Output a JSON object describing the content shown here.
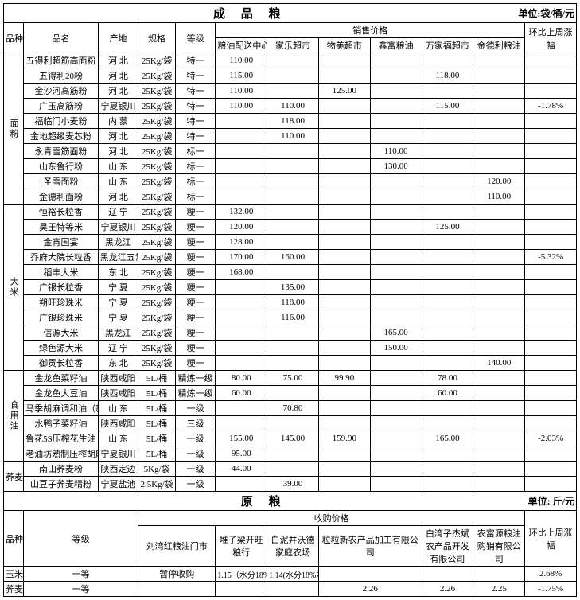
{
  "titles": {
    "main1": "成 品 粮",
    "unit1": "单位:袋/桶/元",
    "main2": "原   粮",
    "unit2": "单位: 斤/元"
  },
  "headers1": {
    "pz": "品种",
    "pm": "品名",
    "cd": "产地",
    "gg": "规格",
    "dj": "等级",
    "xsjg": "销售价格",
    "hbsz": "环比上周涨幅",
    "cols": [
      "粮油配送中心",
      "家乐超市",
      "物美超市",
      "鑫富粮油",
      "万家福超市",
      "金德利粮油"
    ]
  },
  "cat": {
    "mf": "面粉",
    "dm": "大米",
    "syy": "食用油",
    "qmm": "荞麦面",
    "ym": "玉米",
    "qm": "荞麦"
  },
  "rows_mf": [
    {
      "pm": "五得利超筋高面粉",
      "cd": "河  北",
      "gg": "25Kg/袋",
      "dj": "特一",
      "v": [
        "110.00",
        "",
        "",
        "",
        "",
        ""
      ],
      "hb": ""
    },
    {
      "pm": "五得利20粉",
      "cd": "河  北",
      "gg": "25Kg/袋",
      "dj": "特一",
      "v": [
        "115.00",
        "",
        "",
        "",
        "118.00",
        ""
      ],
      "hb": ""
    },
    {
      "pm": "金沙河高筋粉",
      "cd": "河  北",
      "gg": "25Kg/袋",
      "dj": "特一",
      "v": [
        "110.00",
        "",
        "125.00",
        "",
        "",
        ""
      ],
      "hb": ""
    },
    {
      "pm": "广玉高筋粉",
      "cd": "宁夏银川",
      "gg": "25Kg/袋",
      "dj": "特一",
      "v": [
        "110.00",
        "110.00",
        "",
        "",
        "115.00",
        ""
      ],
      "hb": "-1.78%"
    },
    {
      "pm": "福临门小麦粉",
      "cd": "内  蒙",
      "gg": "25Kg/袋",
      "dj": "特一",
      "v": [
        "",
        "118.00",
        "",
        "",
        "",
        ""
      ],
      "hb": ""
    },
    {
      "pm": "金地超级麦芯粉",
      "cd": "河  北",
      "gg": "25Kg/袋",
      "dj": "特一",
      "v": [
        "",
        "110.00",
        "",
        "",
        "",
        ""
      ],
      "hb": ""
    },
    {
      "pm": "永青雪筋面粉",
      "cd": "河  北",
      "gg": "25Kg/袋",
      "dj": "标一",
      "v": [
        "",
        "",
        "",
        "110.00",
        "",
        ""
      ],
      "hb": ""
    },
    {
      "pm": "山东鲁行粉",
      "cd": "山  东",
      "gg": "25Kg/袋",
      "dj": "标一",
      "v": [
        "",
        "",
        "",
        "130.00",
        "",
        ""
      ],
      "hb": ""
    },
    {
      "pm": "圣雪面粉",
      "cd": "山  东",
      "gg": "25Kg/袋",
      "dj": "标一",
      "v": [
        "",
        "",
        "",
        "",
        "",
        "120.00"
      ],
      "hb": ""
    },
    {
      "pm": "金德利面粉",
      "cd": "河  北",
      "gg": "25Kg/袋",
      "dj": "标一",
      "v": [
        "",
        "",
        "",
        "",
        "",
        "110.00"
      ],
      "hb": ""
    }
  ],
  "rows_dm": [
    {
      "pm": "恒裕长粒香",
      "cd": "辽  宁",
      "gg": "25Kg/袋",
      "dj": "粳一",
      "v": [
        "132.00",
        "",
        "",
        "",
        "",
        ""
      ],
      "hb": ""
    },
    {
      "pm": "昊王特等米",
      "cd": "宁夏银川",
      "gg": "25Kg/袋",
      "dj": "粳一",
      "v": [
        "120.00",
        "",
        "",
        "",
        "125.00",
        ""
      ],
      "hb": ""
    },
    {
      "pm": "金宵国宴",
      "cd": "黑龙江",
      "gg": "25Kg/袋",
      "dj": "粳一",
      "v": [
        "128.00",
        "",
        "",
        "",
        "",
        ""
      ],
      "hb": ""
    },
    {
      "pm": "乔府大院长粒香",
      "cd": "黑龙江五常",
      "gg": "25Kg/袋",
      "dj": "粳一",
      "v": [
        "170.00",
        "160.00",
        "",
        "",
        "",
        ""
      ],
      "hb": "-5.32%"
    },
    {
      "pm": "稻丰大米",
      "cd": "东  北",
      "gg": "25Kg/袋",
      "dj": "粳一",
      "v": [
        "168.00",
        "",
        "",
        "",
        "",
        ""
      ],
      "hb": ""
    },
    {
      "pm": "广银长粒香",
      "cd": "宁  夏",
      "gg": "25Kg/袋",
      "dj": "粳一",
      "v": [
        "",
        "135.00",
        "",
        "",
        "",
        ""
      ],
      "hb": ""
    },
    {
      "pm": "朔旺珍珠米",
      "cd": "宁  夏",
      "gg": "25Kg/袋",
      "dj": "粳一",
      "v": [
        "",
        "118.00",
        "",
        "",
        "",
        ""
      ],
      "hb": ""
    },
    {
      "pm": "广银珍珠米",
      "cd": "宁  夏",
      "gg": "25Kg/袋",
      "dj": "粳一",
      "v": [
        "",
        "116.00",
        "",
        "",
        "",
        ""
      ],
      "hb": ""
    },
    {
      "pm": "信源大米",
      "cd": "黑龙江",
      "gg": "25Kg/袋",
      "dj": "粳一",
      "v": [
        "",
        "",
        "",
        "165.00",
        "",
        ""
      ],
      "hb": ""
    },
    {
      "pm": "绿色源大米",
      "cd": "辽  宁",
      "gg": "25Kg/袋",
      "dj": "粳一",
      "v": [
        "",
        "",
        "",
        "150.00",
        "",
        ""
      ],
      "hb": ""
    },
    {
      "pm": "御贡长粒香",
      "cd": "东  北",
      "gg": "25Kg/袋",
      "dj": "粳一",
      "v": [
        "",
        "",
        "",
        "",
        "",
        "140.00"
      ],
      "hb": ""
    }
  ],
  "rows_syy": [
    {
      "pm": "金龙鱼菜籽油",
      "cd": "陕西咸阳",
      "gg": "5L/桶",
      "dj": "精炼一级",
      "v": [
        "80.00",
        "75.00",
        "99.90",
        "",
        "78.00",
        ""
      ],
      "hb": ""
    },
    {
      "pm": "金龙鱼大豆油",
      "cd": "陕西咸阳",
      "gg": "5L/桶",
      "dj": "精炼一级",
      "v": [
        "60.00",
        "",
        "",
        "",
        "60.00",
        ""
      ],
      "hb": ""
    },
    {
      "pm": "马季胡麻调和油（新增）",
      "cd": "山  东",
      "gg": "5L/桶",
      "dj": "一级",
      "v": [
        "",
        "70.80",
        "",
        "",
        "",
        ""
      ],
      "hb": ""
    },
    {
      "pm": "水鸭子菜籽油",
      "cd": "陕西咸阳",
      "gg": "5L/桶",
      "dj": "三级",
      "v": [
        "",
        "",
        "",
        "",
        "",
        ""
      ],
      "hb": ""
    },
    {
      "pm": "鲁花5S压榨花生油",
      "cd": "山  东",
      "gg": "5L/桶",
      "dj": "一级",
      "v": [
        "155.00",
        "145.00",
        "159.90",
        "",
        "165.00",
        ""
      ],
      "hb": "-2.03%"
    },
    {
      "pm": "老油坊熟制压榨胡麻油",
      "cd": "宁夏银川",
      "gg": "5L/桶",
      "dj": "一级",
      "v": [
        "95.00",
        "",
        "",
        "",
        "",
        ""
      ],
      "hb": ""
    }
  ],
  "rows_qmm": [
    {
      "pm": "南山荞麦粉",
      "cd": "陕西定边",
      "gg": "5Kg/袋",
      "dj": "一级",
      "v": [
        "44.00",
        "",
        "",
        "",
        "",
        ""
      ],
      "hb": ""
    },
    {
      "pm": "山豆子荞麦精粉",
      "cd": "宁夏盐池",
      "gg": "2.5Kg/袋",
      "dj": "一级",
      "v": [
        "",
        "39.00",
        "",
        "",
        "",
        ""
      ],
      "hb": ""
    }
  ],
  "headers2": {
    "pz": "品种",
    "dj": "等级",
    "sgjg": "收购价格",
    "hbsz": "环比上周涨幅",
    "cols": [
      "刘湾红粮油门市",
      "堆子梁开旺粮行",
      "白泥井沃德家庭农场",
      "粒粒新农产品加工有限公司",
      "白湾子杰斌农产品开发有限公司",
      "农富源粮油购销有限公司"
    ]
  },
  "rows_ym": [
    {
      "dj": "一等",
      "v": [
        "暂停收购",
        "1.15（水分18%左右）",
        "1.14(水分18%左右)",
        "",
        "",
        ""
      ],
      "hb": "2.68%"
    }
  ],
  "rows_qm": [
    {
      "dj": "一等",
      "v": [
        "",
        "",
        "",
        "2.26",
        "2.26",
        "2.25"
      ],
      "hb": "-1.75%"
    }
  ]
}
